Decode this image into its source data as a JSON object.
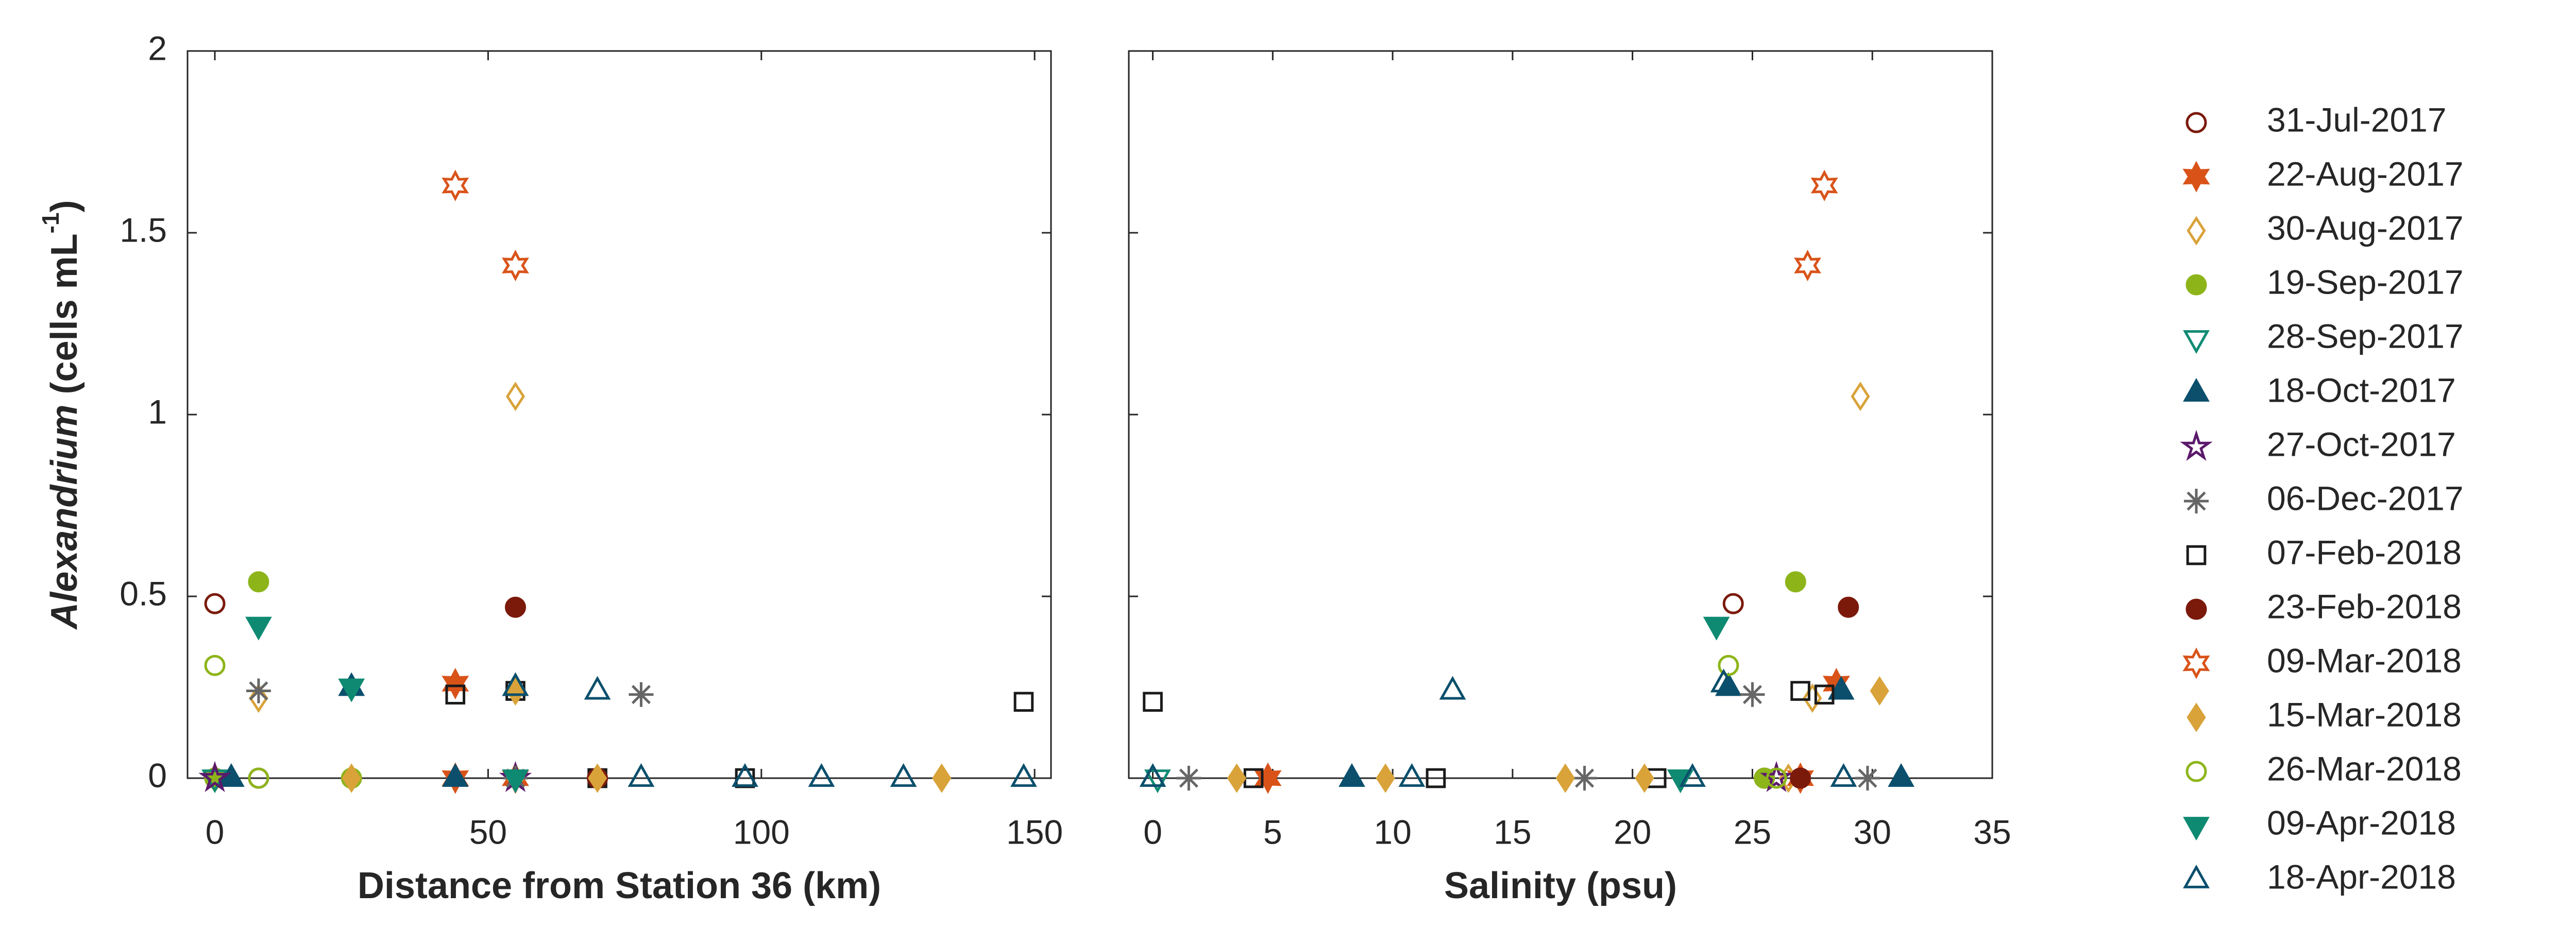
{
  "chart_data": [
    {
      "type": "scatter",
      "xlabel": "Distance from Station 36 (km)",
      "ylabel": {
        "italic": "Alexandrium",
        "text": " (cells mL",
        "superscript": "-1",
        "close": ")"
      },
      "xlim": [
        -5,
        153
      ],
      "xticks": [
        0,
        50,
        100,
        150
      ],
      "ylim": [
        0,
        2
      ],
      "yticks": [
        0,
        0.5,
        1,
        1.5,
        2
      ],
      "series": [
        {
          "name": "31-Jul-2017",
          "color": "#7b1a0b",
          "marker": "circle",
          "filled": false,
          "x": [
            0,
            0,
            8
          ],
          "values": [
            0.48,
            0,
            0
          ]
        },
        {
          "name": "22-Aug-2017",
          "color": "#d95319",
          "marker": "hexagram",
          "filled": true,
          "x": [
            44,
            44,
            55
          ],
          "values": [
            0.26,
            0,
            0
          ]
        },
        {
          "name": "30-Aug-2017",
          "color": "#d9a33a",
          "marker": "diamond",
          "filled": false,
          "x": [
            55,
            8,
            0,
            55
          ],
          "values": [
            1.05,
            0.22,
            0,
            0
          ]
        },
        {
          "name": "19-Sep-2017",
          "color": "#8db51a",
          "marker": "circle",
          "filled": true,
          "x": [
            8,
            25,
            0
          ],
          "values": [
            0.54,
            0,
            0
          ]
        },
        {
          "name": "28-Sep-2017",
          "color": "#0f8a72",
          "marker": "triangle-down",
          "filled": false,
          "x": [
            0,
            55
          ],
          "values": [
            0,
            0
          ]
        },
        {
          "name": "18-Oct-2017",
          "color": "#0b4f6c",
          "marker": "triangle",
          "filled": true,
          "x": [
            25,
            55,
            3,
            44
          ],
          "values": [
            0.25,
            0.25,
            0,
            0
          ]
        },
        {
          "name": "27-Oct-2017",
          "color": "#5b1a6b",
          "marker": "pentagram",
          "filled": false,
          "x": [
            0,
            55
          ],
          "values": [
            0,
            0
          ]
        },
        {
          "name": "06-Dec-2017",
          "color": "#666666",
          "marker": "asterisk",
          "filled": false,
          "x": [
            8,
            78,
            55
          ],
          "values": [
            0.24,
            0.23,
            0
          ]
        },
        {
          "name": "07-Feb-2018",
          "color": "#1a1a1a",
          "marker": "square",
          "filled": false,
          "x": [
            44,
            55,
            148,
            70,
            97
          ],
          "values": [
            0.23,
            0.24,
            0.21,
            0,
            0
          ]
        },
        {
          "name": "23-Feb-2018",
          "color": "#7b1a0b",
          "marker": "circle",
          "filled": true,
          "x": [
            55,
            70
          ],
          "values": [
            0.47,
            0
          ]
        },
        {
          "name": "09-Mar-2018",
          "color": "#d95319",
          "marker": "hexagram",
          "filled": false,
          "x": [
            44,
            55
          ],
          "values": [
            1.63,
            1.41
          ]
        },
        {
          "name": "15-Mar-2018",
          "color": "#d9a33a",
          "marker": "diamond",
          "filled": true,
          "x": [
            55,
            25,
            70,
            133
          ],
          "values": [
            0.24,
            0,
            0,
            0
          ]
        },
        {
          "name": "26-Mar-2018",
          "color": "#8db51a",
          "marker": "circle",
          "filled": false,
          "x": [
            0,
            8
          ],
          "values": [
            0.31,
            0
          ]
        },
        {
          "name": "09-Apr-2018",
          "color": "#0f8a72",
          "marker": "triangle-down",
          "filled": true,
          "x": [
            8,
            25,
            55
          ],
          "values": [
            0.42,
            0.25,
            0
          ]
        },
        {
          "name": "18-Apr-2018",
          "color": "#0b4f6c",
          "marker": "triangle",
          "filled": false,
          "x": [
            70,
            55,
            148,
            111,
            126,
            97,
            78
          ],
          "values": [
            0.24,
            0.25,
            0,
            0,
            0,
            0,
            0
          ]
        }
      ]
    },
    {
      "type": "scatter",
      "xlabel": "Salinity (psu)",
      "xlim": [
        -1,
        35
      ],
      "xticks": [
        0,
        5,
        10,
        15,
        20,
        25,
        30,
        35
      ],
      "ylim": [
        0,
        2
      ],
      "yticks": [
        0,
        0.5,
        1,
        1.5,
        2
      ],
      "series": [
        {
          "color": "#7b1a0b",
          "marker": "circle",
          "filled": false,
          "x": [
            24.2,
            25.5
          ],
          "values": [
            0.48,
            0
          ]
        },
        {
          "color": "#d95319",
          "marker": "hexagram",
          "filled": true,
          "x": [
            28.5,
            4.8,
            27
          ],
          "values": [
            0.26,
            0,
            0
          ]
        },
        {
          "color": "#d9a33a",
          "marker": "diamond",
          "filled": false,
          "x": [
            29.5,
            27.5,
            26.5
          ],
          "values": [
            1.05,
            0.22,
            0
          ]
        },
        {
          "color": "#8db51a",
          "marker": "circle",
          "filled": true,
          "x": [
            26.8,
            25.5
          ],
          "values": [
            0.54,
            0
          ]
        },
        {
          "color": "#0f8a72",
          "marker": "triangle-down",
          "filled": false,
          "x": [
            0.2,
            22
          ],
          "values": [
            0,
            0
          ]
        },
        {
          "color": "#0b4f6c",
          "marker": "triangle",
          "filled": true,
          "x": [
            24,
            28.7,
            8.3,
            31.2
          ],
          "values": [
            0.25,
            0.24,
            0,
            0
          ]
        },
        {
          "color": "#5b1a6b",
          "marker": "pentagram",
          "filled": false,
          "x": [
            26
          ],
          "values": [
            0
          ]
        },
        {
          "color": "#666666",
          "marker": "asterisk",
          "filled": false,
          "x": [
            25,
            1.5,
            18,
            29.8
          ],
          "values": [
            0.23,
            0,
            0,
            0
          ]
        },
        {
          "color": "#1a1a1a",
          "marker": "square",
          "filled": false,
          "x": [
            27,
            28,
            0,
            4.2,
            11.8,
            21
          ],
          "values": [
            0.24,
            0.23,
            0.21,
            0,
            0,
            0
          ]
        },
        {
          "color": "#7b1a0b",
          "marker": "circle",
          "filled": true,
          "x": [
            29,
            27
          ],
          "values": [
            0.47,
            0
          ]
        },
        {
          "color": "#d95319",
          "marker": "hexagram",
          "filled": false,
          "x": [
            28,
            27.3
          ],
          "values": [
            1.63,
            1.41
          ]
        },
        {
          "color": "#d9a33a",
          "marker": "diamond",
          "filled": true,
          "x": [
            30.3,
            3.5,
            9.7,
            17.2,
            20.5
          ],
          "values": [
            0.24,
            0,
            0,
            0,
            0
          ]
        },
        {
          "color": "#8db51a",
          "marker": "circle",
          "filled": false,
          "x": [
            24,
            26
          ],
          "values": [
            0.31,
            0
          ]
        },
        {
          "color": "#0f8a72",
          "marker": "triangle-down",
          "filled": true,
          "x": [
            23.5,
            22
          ],
          "values": [
            0.42,
            0
          ]
        },
        {
          "color": "#0b4f6c",
          "marker": "triangle",
          "filled": false,
          "x": [
            12.5,
            23.8,
            0,
            10.8,
            28.8,
            22.5
          ],
          "values": [
            0.24,
            0.26,
            0,
            0,
            0,
            0
          ]
        }
      ]
    }
  ]
}
